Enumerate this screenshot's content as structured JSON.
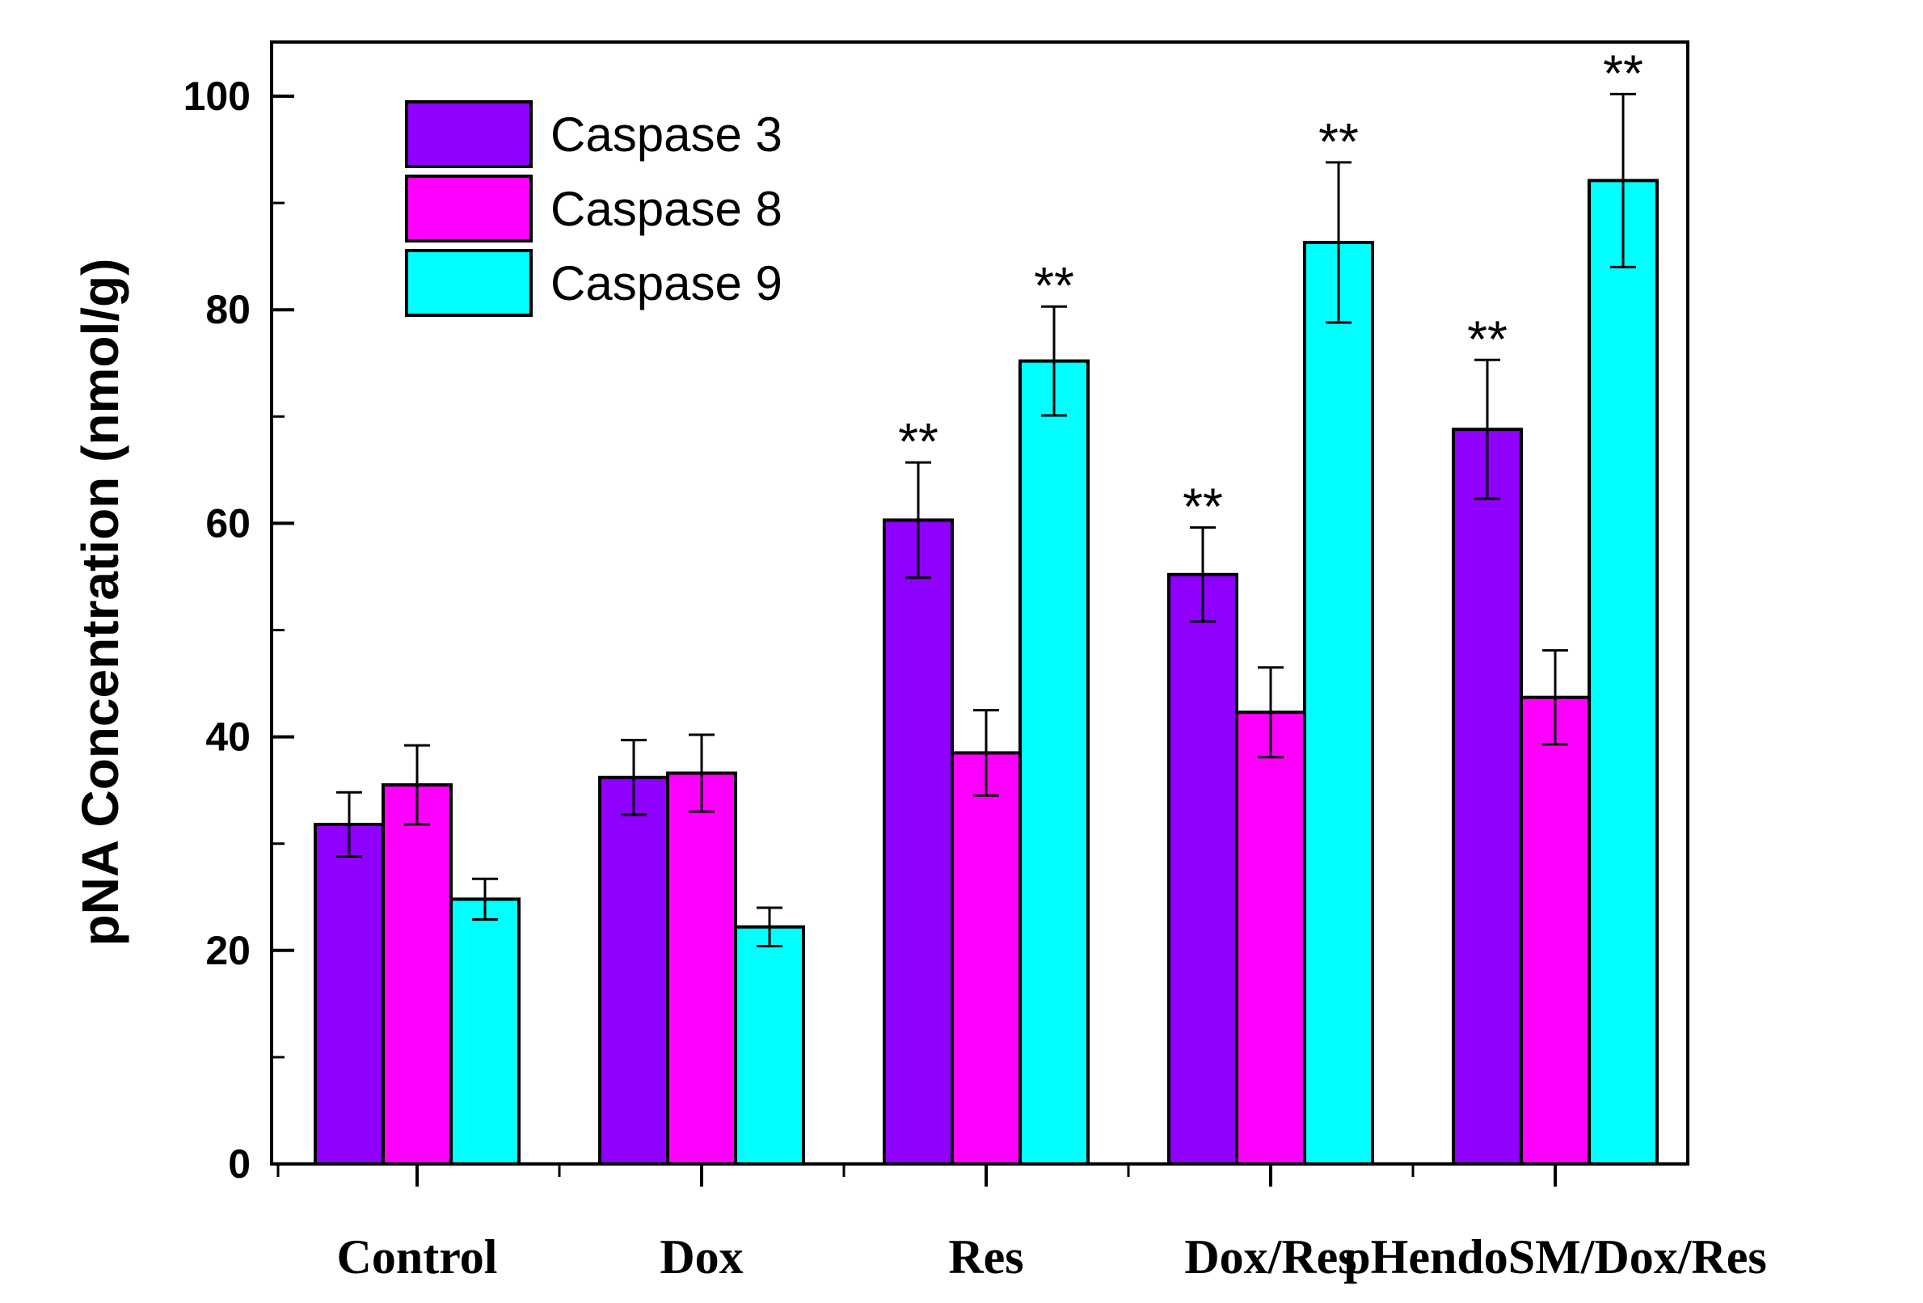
{
  "chart_data": {
    "type": "bar",
    "title": "",
    "xlabel": "",
    "ylabel": "pNA Concentration (nmol/g)",
    "ylim": [
      0,
      105
    ],
    "yticks": [
      0,
      20,
      40,
      60,
      80,
      100
    ],
    "categories": [
      "Control",
      "Dox",
      "Res",
      "Dox/Res",
      "pHendoSM/Dox/Res"
    ],
    "legend_position": "top-left",
    "series": [
      {
        "name": "Caspase 3",
        "color": "#8f00ff",
        "values": [
          31.8,
          36.2,
          60.3,
          55.2,
          68.8
        ],
        "errors": [
          3.0,
          3.5,
          5.4,
          4.4,
          6.5
        ],
        "significance": [
          "",
          "",
          "**",
          "**",
          "**"
        ]
      },
      {
        "name": "Caspase 8",
        "color": "#ff00ff",
        "values": [
          35.5,
          36.6,
          38.5,
          42.3,
          43.7
        ],
        "errors": [
          3.7,
          3.6,
          4.0,
          4.2,
          4.4
        ],
        "significance": [
          "",
          "",
          "",
          "",
          ""
        ]
      },
      {
        "name": "Caspase 9",
        "color": "#00ffff",
        "values": [
          24.8,
          22.2,
          75.2,
          86.3,
          92.1
        ],
        "errors": [
          1.9,
          1.8,
          5.1,
          7.5,
          8.1
        ],
        "significance": [
          "",
          "",
          "**",
          "**",
          "**"
        ]
      }
    ]
  }
}
